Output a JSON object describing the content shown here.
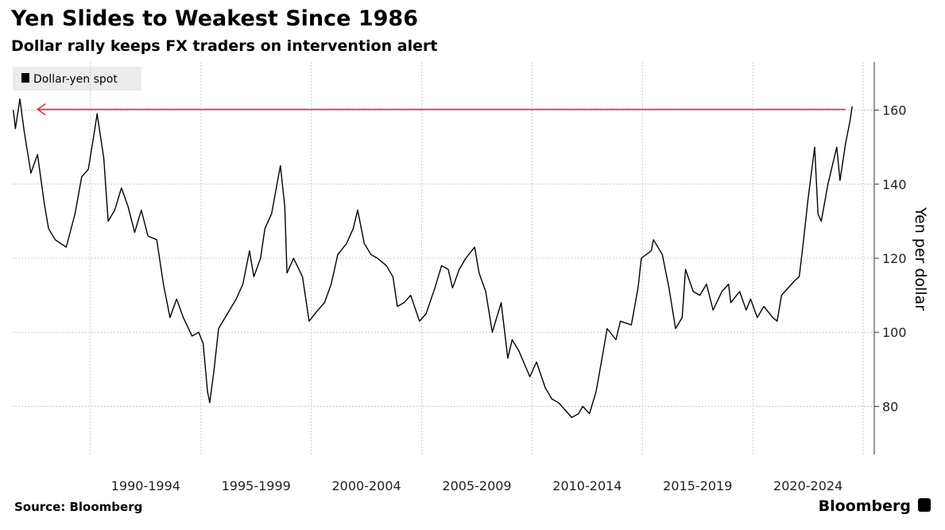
{
  "chart_data": {
    "type": "line",
    "title": "Yen Slides to Weakest Since 1986",
    "subtitle": "Dollar rally keeps FX traders on intervention alert",
    "y_axis_label": "Yen per dollar",
    "source": "Source: Bloomberg",
    "brand": "Bloomberg",
    "xlim": [
      1985.9,
      2025.5
    ],
    "ylim": [
      67,
      173
    ],
    "yticks": [
      80,
      100,
      120,
      140,
      160
    ],
    "xticks": [
      {
        "value": 1992.5,
        "label": "1990-1994"
      },
      {
        "value": 1997.5,
        "label": "1995-1999"
      },
      {
        "value": 2002.5,
        "label": "2000-2004"
      },
      {
        "value": 2007.5,
        "label": "2005-2009"
      },
      {
        "value": 2012.5,
        "label": "2010-2014"
      },
      {
        "value": 2017.5,
        "label": "2015-2019"
      },
      {
        "value": 2022.5,
        "label": "2020-2024"
      }
    ],
    "xgrid": [
      1990,
      1995,
      2000,
      2005,
      2010,
      2015,
      2020,
      2025
    ],
    "grid": true,
    "legend": "top-left",
    "reference_line": {
      "y": 160.2,
      "x": [
        1987.6,
        2024.2
      ],
      "color": "#e8294a"
    },
    "x": [
      1986.5,
      1986.6,
      1986.8,
      1987.0,
      1987.3,
      1987.6,
      1987.9,
      1988.1,
      1988.4,
      1988.9,
      1989.3,
      1989.6,
      1989.9,
      1990.2,
      1990.3,
      1990.6,
      1990.8,
      1991.1,
      1991.4,
      1991.7,
      1992.0,
      1992.3,
      1992.6,
      1993.0,
      1993.3,
      1993.6,
      1993.9,
      1994.2,
      1994.6,
      1994.9,
      1995.1,
      1995.3,
      1995.4,
      1995.6,
      1995.8,
      1996.2,
      1996.6,
      1996.9,
      1997.2,
      1997.4,
      1997.7,
      1997.9,
      1998.2,
      1998.6,
      1998.8,
      1998.9,
      1999.2,
      1999.6,
      1999.9,
      2000.3,
      2000.6,
      2000.9,
      2001.2,
      2001.6,
      2001.9,
      2002.1,
      2002.4,
      2002.7,
      2003.0,
      2003.4,
      2003.7,
      2003.9,
      2004.2,
      2004.5,
      2004.9,
      2005.2,
      2005.6,
      2005.9,
      2006.2,
      2006.4,
      2006.7,
      2007.0,
      2007.4,
      2007.6,
      2007.9,
      2008.2,
      2008.6,
      2008.9,
      2009.1,
      2009.4,
      2009.9,
      2010.2,
      2010.6,
      2010.9,
      2011.2,
      2011.5,
      2011.8,
      2012.1,
      2012.3,
      2012.6,
      2012.9,
      2013.2,
      2013.4,
      2013.8,
      2014.0,
      2014.5,
      2014.8,
      2014.95,
      2015.4,
      2015.5,
      2015.9,
      2016.2,
      2016.5,
      2016.8,
      2016.95,
      2017.3,
      2017.6,
      2017.9,
      2018.2,
      2018.6,
      2018.9,
      2019.0,
      2019.4,
      2019.7,
      2019.9,
      2020.2,
      2020.5,
      2020.9,
      2021.1,
      2021.3,
      2021.9,
      2022.1,
      2022.3,
      2022.5,
      2022.8,
      2022.95,
      2023.1,
      2023.4,
      2023.8,
      2023.95,
      2024.2,
      2024.4,
      2024.5
    ],
    "series": [
      {
        "name": "Dollar-yen spot",
        "color": "#000000",
        "values": [
          160,
          155,
          163,
          154,
          143,
          148,
          135,
          128,
          125,
          123,
          132,
          142,
          144,
          155,
          159,
          147,
          130,
          133,
          139,
          134,
          127,
          133,
          126,
          125,
          113,
          104,
          109,
          104,
          99,
          100,
          97,
          84,
          81,
          90,
          101,
          105,
          109,
          113,
          122,
          115,
          120,
          128,
          132,
          145,
          134,
          116,
          120,
          115,
          103,
          106,
          108,
          113,
          121,
          124,
          128,
          133,
          124,
          121,
          120,
          118,
          115,
          107,
          108,
          110,
          103,
          105,
          112,
          118,
          117,
          112,
          117,
          120,
          123,
          116,
          111,
          100,
          108,
          93,
          98,
          95,
          88,
          92,
          85,
          82,
          81,
          79,
          77,
          78,
          80,
          78,
          84,
          94,
          101,
          98,
          103,
          102,
          112,
          120,
          122,
          125,
          121,
          112,
          101,
          104,
          117,
          111,
          110,
          113,
          106,
          111,
          113,
          108,
          111,
          106,
          109,
          104,
          107,
          104,
          103,
          110,
          114,
          115,
          125,
          136,
          150,
          132,
          130,
          140,
          150,
          141,
          151,
          157,
          161
        ]
      }
    ]
  }
}
